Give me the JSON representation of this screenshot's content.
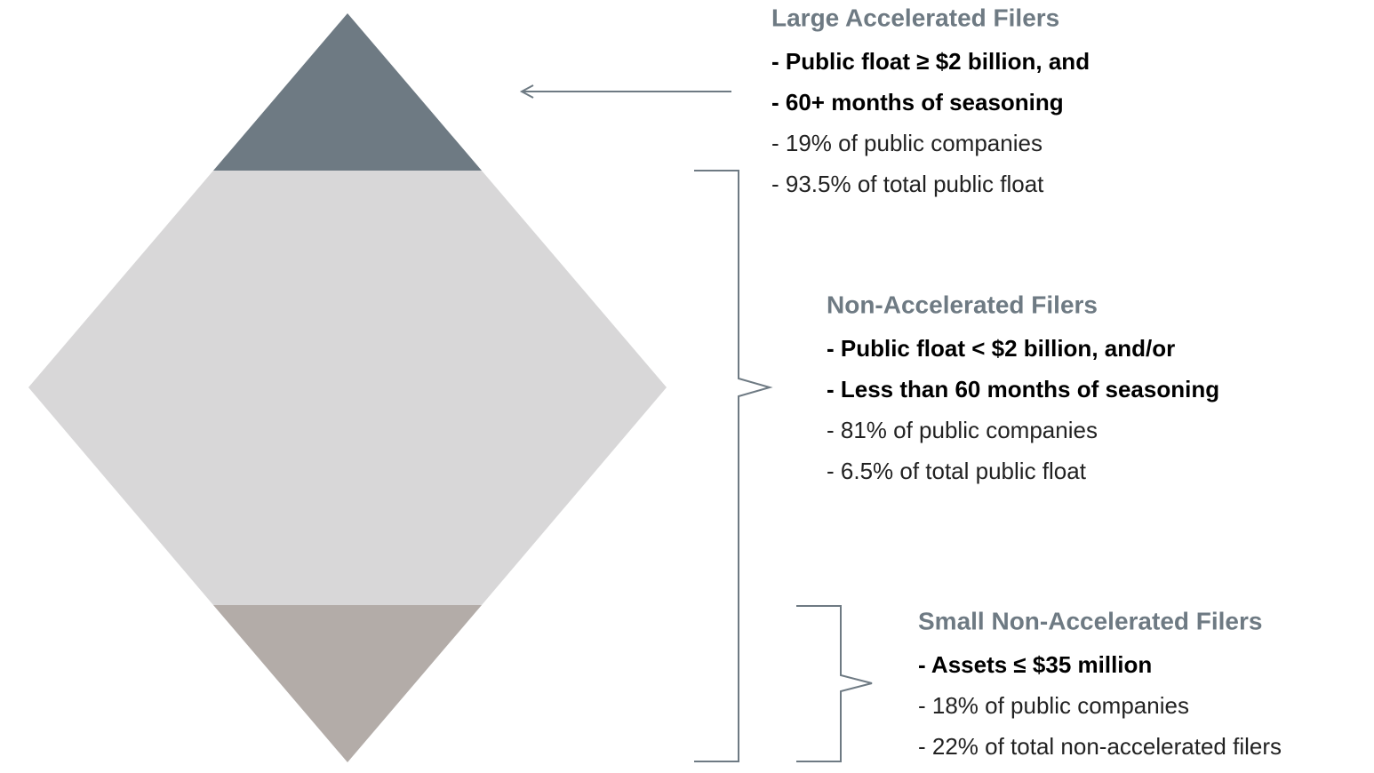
{
  "groups": [
    {
      "title": "Large Accelerated Filers",
      "items": [
        {
          "text": "- Public float ≥ $2 billion, and",
          "bold": true
        },
        {
          "text": "- 60+ months of seasoning",
          "bold": true
        },
        {
          "text": "- 19% of public companies",
          "bold": false
        },
        {
          "text": "- 93.5% of total public float",
          "bold": false
        }
      ]
    },
    {
      "title": "Non-Accelerated Filers",
      "items": [
        {
          "text": "- Public float < $2 billion, and/or",
          "bold": true
        },
        {
          "text": "- Less than 60 months of seasoning",
          "bold": true
        },
        {
          "text": "- 81% of public companies",
          "bold": false
        },
        {
          "text": "- 6.5% of total public float",
          "bold": false
        }
      ]
    },
    {
      "title": "Small Non-Accelerated Filers",
      "items": [
        {
          "text": "- Assets ≤ $35 million",
          "bold": true
        },
        {
          "text": "- 18% of public companies",
          "bold": false
        },
        {
          "text": "- 22% of total non-accelerated filers",
          "bold": false
        }
      ]
    }
  ]
}
